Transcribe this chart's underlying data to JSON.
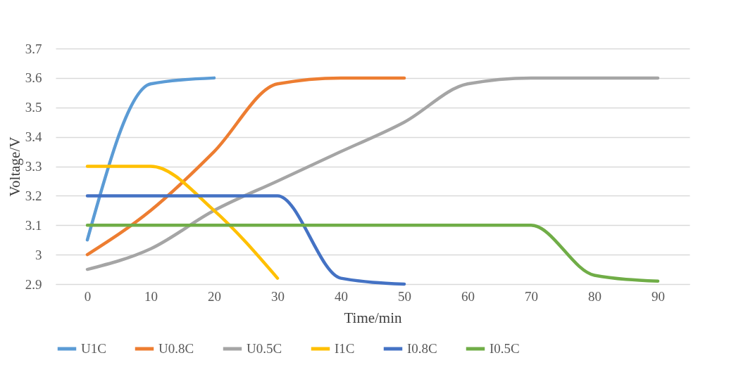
{
  "chart_data": {
    "type": "line",
    "xlabel": "Time/min",
    "ylabel": "Voltage/V",
    "categories": [
      "0",
      "10",
      "20",
      "30",
      "40",
      "50",
      "60",
      "70",
      "80",
      "90"
    ],
    "ylim": [
      2.9,
      3.7
    ],
    "yticks": [
      {
        "value": 2.9,
        "label": "2.9"
      },
      {
        "value": 3.0,
        "label": "3"
      },
      {
        "value": 3.1,
        "label": "3.1"
      },
      {
        "value": 3.2,
        "label": "3.2"
      },
      {
        "value": 3.3,
        "label": "3.3"
      },
      {
        "value": 3.4,
        "label": "3.4"
      },
      {
        "value": 3.5,
        "label": "3.5"
      },
      {
        "value": 3.6,
        "label": "3.6"
      },
      {
        "value": 3.7,
        "label": "3.7"
      }
    ],
    "grid": "y",
    "legend": "bottom",
    "line_style": "solid",
    "marker": "none",
    "series": [
      {
        "name": "U1C",
        "color": "#5b9bd5",
        "values": [
          3.05,
          3.58,
          3.6,
          null,
          null,
          null,
          null,
          null,
          null,
          null
        ]
      },
      {
        "name": "U0.8C",
        "color": "#ed7d31",
        "values": [
          3.0,
          3.15,
          3.35,
          3.58,
          3.6,
          3.6,
          null,
          null,
          null,
          null
        ]
      },
      {
        "name": "U0.5C",
        "color": "#a5a5a5",
        "values": [
          2.95,
          3.02,
          3.15,
          3.25,
          3.35,
          3.45,
          3.58,
          3.6,
          3.6,
          3.6
        ]
      },
      {
        "name": "I1C",
        "color": "#ffc000",
        "values": [
          3.3,
          3.3,
          3.15,
          2.92,
          null,
          null,
          null,
          null,
          null,
          null
        ]
      },
      {
        "name": "I0.8C",
        "color": "#4472c4",
        "values": [
          3.2,
          3.2,
          3.2,
          3.2,
          2.92,
          2.9,
          null,
          null,
          null,
          null
        ]
      },
      {
        "name": "I0.5C",
        "color": "#70ad47",
        "values": [
          3.1,
          3.1,
          3.1,
          3.1,
          3.1,
          3.1,
          3.1,
          3.1,
          2.93,
          2.91
        ]
      }
    ]
  }
}
